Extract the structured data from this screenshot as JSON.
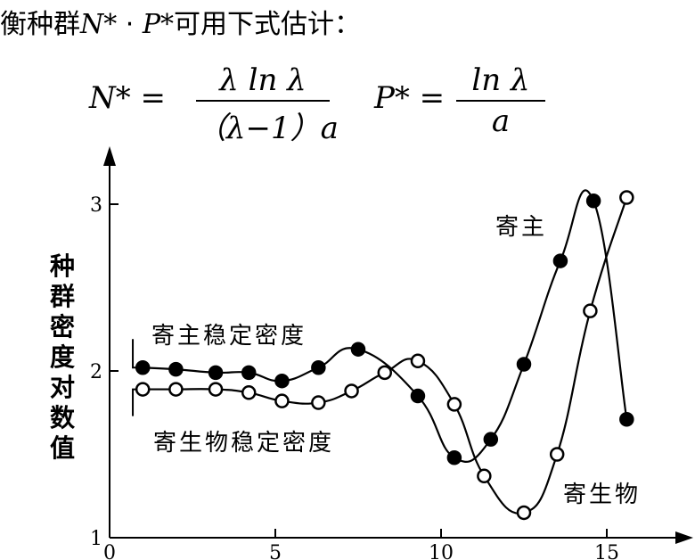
{
  "text": {
    "intro_prefix": "衡种群",
    "intro_n": "N*",
    "intro_dot": " · ",
    "intro_p": "P*",
    "intro_suffix": "可用下式估计：",
    "eq1_lhs": "N* = ",
    "eq1_num": "λ ln λ",
    "eq1_den": "（λ−1）a",
    "eq2_lhs": "P* = ",
    "eq2_num": "ln λ",
    "eq2_den": "a"
  },
  "chart_data": {
    "type": "line",
    "ylabel": "种群密度对数值",
    "xlim": [
      0,
      17
    ],
    "ylim": [
      1,
      3.2
    ],
    "x_ticks": [
      "0",
      "5",
      "10",
      "15"
    ],
    "y_ticks": [
      "1",
      "2",
      "3"
    ],
    "series": [
      {
        "name": "寄主",
        "marker": "filled",
        "color": "#000000",
        "points": [
          [
            1,
            2.02
          ],
          [
            2,
            2.01
          ],
          [
            3.2,
            1.99
          ],
          [
            4.2,
            1.99
          ],
          [
            5.2,
            1.94
          ],
          [
            6.3,
            2.02
          ],
          [
            7.5,
            2.13
          ],
          [
            9.3,
            1.85
          ],
          [
            10.4,
            1.48
          ],
          [
            11.5,
            1.59
          ],
          [
            12.5,
            2.04
          ],
          [
            13.6,
            2.66
          ],
          [
            14.6,
            3.02
          ],
          [
            15.6,
            1.71
          ]
        ]
      },
      {
        "name": "寄生物",
        "marker": "open",
        "color": "#000000",
        "points": [
          [
            1,
            1.89
          ],
          [
            2,
            1.89
          ],
          [
            3.2,
            1.89
          ],
          [
            4.2,
            1.87
          ],
          [
            5.2,
            1.82
          ],
          [
            6.3,
            1.81
          ],
          [
            7.3,
            1.88
          ],
          [
            8.3,
            1.99
          ],
          [
            9.3,
            2.06
          ],
          [
            10.4,
            1.8
          ],
          [
            11.3,
            1.37
          ],
          [
            12.5,
            1.15
          ],
          [
            13.5,
            1.5
          ],
          [
            14.5,
            2.36
          ],
          [
            15.6,
            3.04
          ]
        ]
      }
    ],
    "annotations": [
      "寄主稳定密度",
      "寄生物稳定密度",
      "寄主",
      "寄生物"
    ]
  }
}
